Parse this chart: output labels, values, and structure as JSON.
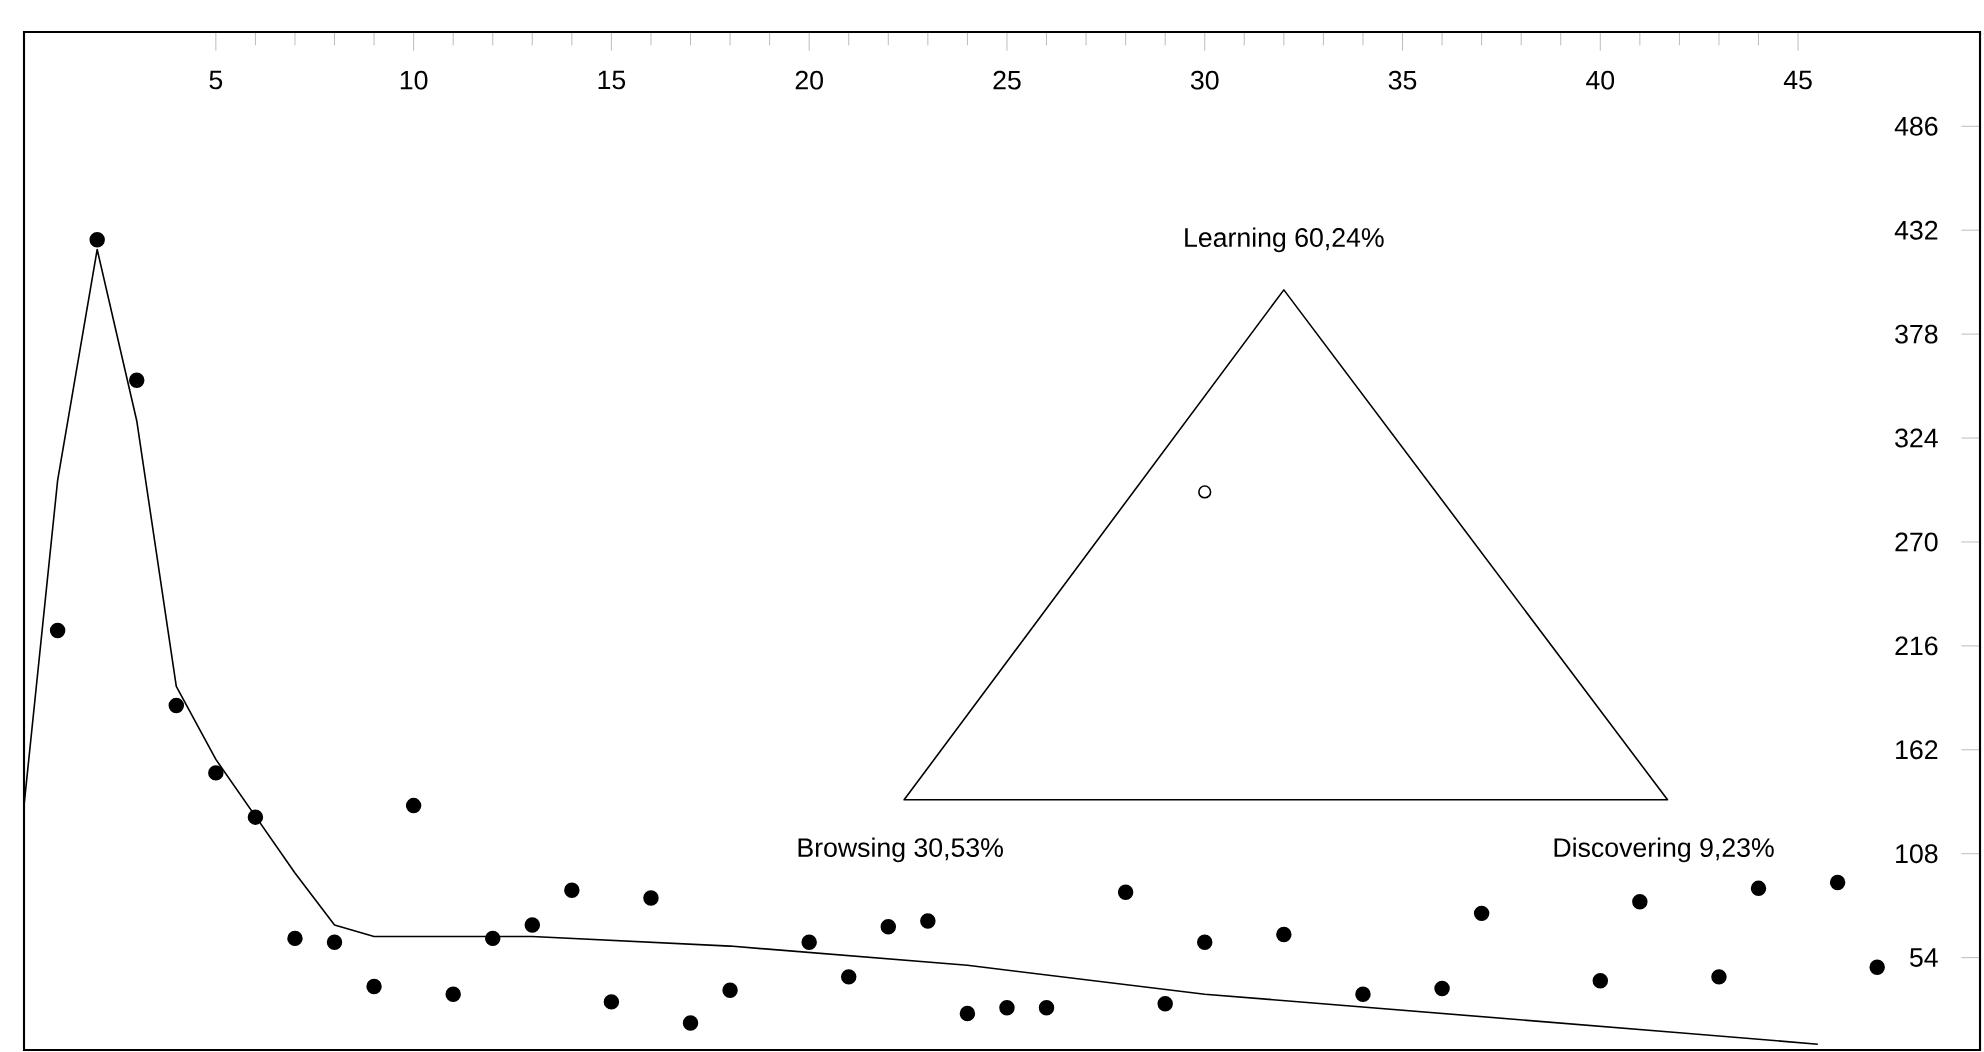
{
  "chart_data": {
    "type": "scatter",
    "xlim": [
      0.15,
      49.6
    ],
    "ylim": [
      6,
      535
    ],
    "xticks": [
      5,
      10,
      15,
      20,
      25,
      30,
      35,
      40,
      45
    ],
    "yticks": [
      54,
      108,
      162,
      216,
      270,
      324,
      378,
      432,
      486
    ],
    "annotations": [
      "Learning 60,24%",
      "Browsing 30,53%",
      "Discovering 9,23%"
    ],
    "series": [
      {
        "color": "#000000",
        "marker": "circle",
        "x": [
          1,
          2,
          3,
          4,
          5,
          6,
          7,
          8,
          9,
          10,
          11,
          12,
          13,
          14,
          15,
          16,
          17,
          18,
          20,
          21,
          22,
          23,
          24,
          25,
          26,
          28,
          29,
          30,
          32,
          34,
          36,
          37,
          40,
          41,
          43,
          44,
          46,
          47
        ],
        "values": [
          224,
          427,
          354,
          185,
          150,
          127,
          64,
          62,
          39,
          133,
          35,
          64,
          71,
          89,
          31,
          85,
          20,
          37,
          62,
          44,
          70,
          73,
          25,
          28,
          28,
          88,
          30,
          62,
          66,
          35,
          38,
          77,
          42,
          83,
          44,
          90,
          93,
          49
        ]
      },
      {
        "type": "line",
        "color": "#000000",
        "marker": "none",
        "line_style": "solid",
        "x": [
          0.15,
          1,
          2,
          3,
          4,
          5,
          7,
          8,
          9,
          13,
          18,
          24,
          30,
          42,
          45.5
        ],
        "values": [
          133,
          302,
          422,
          333,
          195,
          157,
          98,
          71,
          65,
          65,
          60,
          50,
          35,
          15,
          9
        ]
      }
    ]
  }
}
